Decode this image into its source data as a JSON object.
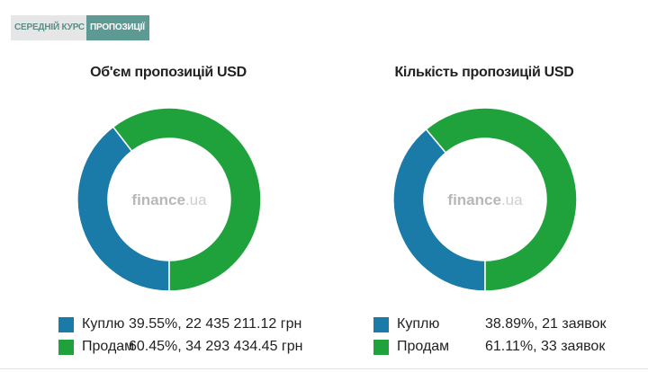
{
  "tabs": [
    {
      "label": "СЕРЕДНІЙ КУРС",
      "active": false
    },
    {
      "label": "ПРОПОЗИЦІЇ",
      "active": true
    }
  ],
  "colors": {
    "buy": "#1a7aa8",
    "sell": "#1fa23c",
    "tab_active": "#5c9a93",
    "tab_inactive_bg": "#e6e6e6"
  },
  "watermark": {
    "brand": "finance",
    "tld": ".ua"
  },
  "charts": [
    {
      "title": "Об'єм пропозицій USD",
      "legend": [
        {
          "label": "Куплю",
          "value": "39.55%, 22 435 211.12 грн"
        },
        {
          "label": "Продам",
          "value": "60.45%, 34 293 434.45 грн"
        }
      ]
    },
    {
      "title": "Кількість пропозицій USD",
      "legend": [
        {
          "label": "Куплю",
          "value": "38.89%, 21 заявок"
        },
        {
          "label": "Продам",
          "value": "61.11%, 33 заявок"
        }
      ]
    }
  ],
  "chart_data": [
    {
      "type": "pie",
      "title": "Об'єм пропозицій USD",
      "series": [
        {
          "name": "Куплю",
          "values": [
            39.55
          ]
        },
        {
          "name": "Продам",
          "values": [
            60.45
          ]
        }
      ]
    },
    {
      "type": "pie",
      "title": "Кількість пропозицій USD",
      "series": [
        {
          "name": "Куплю",
          "values": [
            38.89
          ]
        },
        {
          "name": "Продам",
          "values": [
            61.11
          ]
        }
      ]
    }
  ]
}
